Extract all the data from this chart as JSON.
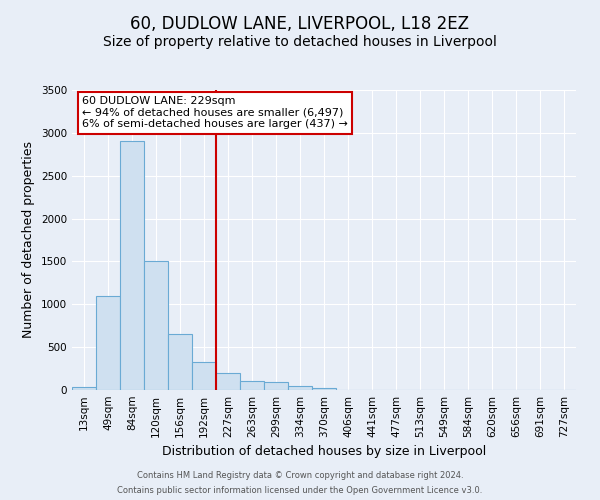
{
  "title": "60, DUDLOW LANE, LIVERPOOL, L18 2EZ",
  "subtitle": "Size of property relative to detached houses in Liverpool",
  "xlabel": "Distribution of detached houses by size in Liverpool",
  "ylabel": "Number of detached properties",
  "bin_labels": [
    "13sqm",
    "49sqm",
    "84sqm",
    "120sqm",
    "156sqm",
    "192sqm",
    "227sqm",
    "263sqm",
    "299sqm",
    "334sqm",
    "370sqm",
    "406sqm",
    "441sqm",
    "477sqm",
    "513sqm",
    "549sqm",
    "584sqm",
    "620sqm",
    "656sqm",
    "691sqm",
    "727sqm"
  ],
  "bar_heights": [
    40,
    1100,
    2900,
    1500,
    650,
    330,
    200,
    110,
    90,
    50,
    20,
    0,
    0,
    0,
    0,
    0,
    0,
    0,
    0,
    0,
    0
  ],
  "bar_color": "#cfe0f0",
  "bar_edgecolor": "#6aaad4",
  "background_color": "#e8eef7",
  "grid_color": "#ffffff",
  "vline_color": "#cc0000",
  "annotation_title": "60 DUDLOW LANE: 229sqm",
  "annotation_line1": "← 94% of detached houses are smaller (6,497)",
  "annotation_line2": "6% of semi-detached houses are larger (437) →",
  "annotation_box_color": "#ffffff",
  "annotation_box_edgecolor": "#cc0000",
  "ylim": [
    0,
    3500
  ],
  "yticks": [
    0,
    500,
    1000,
    1500,
    2000,
    2500,
    3000,
    3500
  ],
  "footer_line1": "Contains HM Land Registry data © Crown copyright and database right 2024.",
  "footer_line2": "Contains public sector information licensed under the Open Government Licence v3.0.",
  "title_fontsize": 12,
  "subtitle_fontsize": 10,
  "axis_label_fontsize": 9,
  "tick_fontsize": 7.5,
  "annotation_fontsize": 8,
  "footer_fontsize": 6
}
